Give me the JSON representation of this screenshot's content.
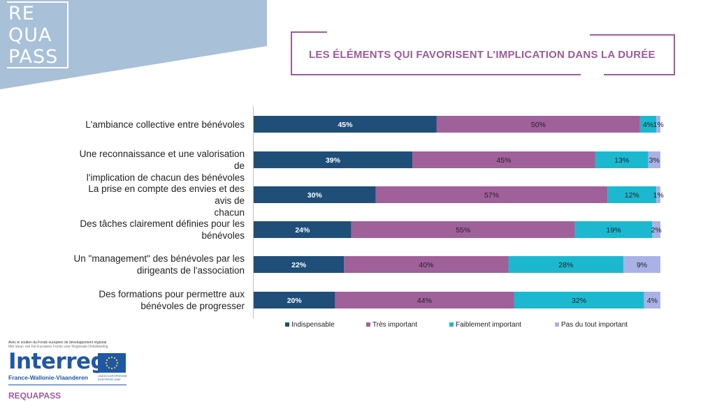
{
  "logo": {
    "lines": [
      "RE",
      "QUA",
      "PASS"
    ]
  },
  "title": "LES ÉLÉMENTS QUI FAVORISENT L’IMPLICATION DANS LA DURÉE",
  "colors": {
    "corner": "#a8c0d8",
    "accent": "#9b5b9b",
    "series": [
      "#1f4e79",
      "#a0609a",
      "#1cb8d0",
      "#a9b2e6"
    ]
  },
  "chart_data": {
    "type": "bar",
    "orientation": "horizontal",
    "stacked": true,
    "categories": [
      [
        "L'ambiance collective entre bénévoles"
      ],
      [
        "Une reconnaissance et une valorisation de",
        "l'implication de chacun des bénévoles"
      ],
      [
        "La prise en compte des envies et des avis de",
        "chacun"
      ],
      [
        "Des tâches clairement définies pour les",
        "bénévoles"
      ],
      [
        "Un \"management\" des bénévoles par les",
        "dirigeants de l'association"
      ],
      [
        "Des formations pour permettre aux",
        "bénévoles de progresser"
      ]
    ],
    "series": [
      {
        "name": "Indispensable",
        "values": [
          45,
          39,
          30,
          24,
          22,
          20
        ]
      },
      {
        "name": "Très important",
        "values": [
          50,
          45,
          57,
          55,
          40,
          44
        ]
      },
      {
        "name": "Faiblement important",
        "values": [
          4,
          13,
          12,
          19,
          28,
          32
        ]
      },
      {
        "name": "Pas du tout important",
        "values": [
          1,
          3,
          1,
          2,
          9,
          4
        ]
      }
    ],
    "legend_position": "bottom",
    "grid": false
  },
  "footer": {
    "support_line_1": "Avec le soutien du Fonds européen de développement régional",
    "support_line_2": "Met steun van het Europees Fonds voor Regionale Ontwikkeling",
    "program": "Interreg",
    "region": "France-Wallonie-Vlaanderen",
    "eu_line_1": "UNION EUROPÉENNE",
    "eu_line_2": "EUROPESE UNIE",
    "project": "REQUAPASS"
  }
}
